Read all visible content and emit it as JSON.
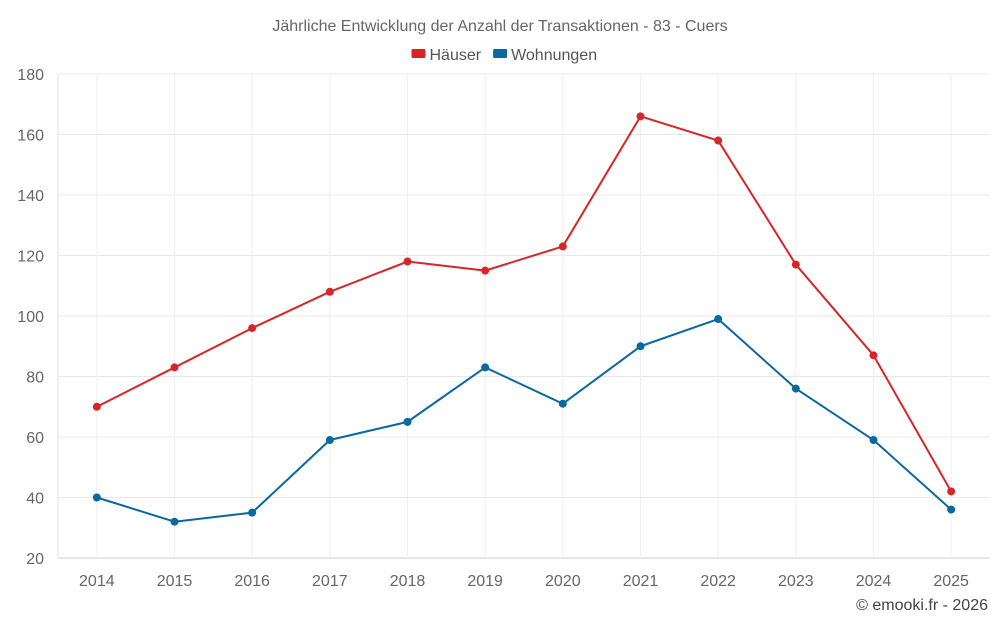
{
  "chart_data": {
    "type": "line",
    "title": "Jährliche Entwicklung der Anzahl der Transaktionen - 83 - Cuers",
    "categories": [
      "2014",
      "2015",
      "2016",
      "2017",
      "2018",
      "2019",
      "2020",
      "2021",
      "2022",
      "2023",
      "2024",
      "2025"
    ],
    "series": [
      {
        "name": "Häuser",
        "color": "#d62728",
        "values": [
          70,
          83,
          96,
          108,
          118,
          115,
          123,
          166,
          158,
          117,
          87,
          42
        ]
      },
      {
        "name": "Wohnungen",
        "color": "#0868a0",
        "values": [
          40,
          32,
          35,
          59,
          65,
          83,
          71,
          90,
          99,
          76,
          59,
          36
        ]
      }
    ],
    "ylim": [
      20,
      180
    ],
    "yticks": [
      20,
      40,
      60,
      80,
      100,
      120,
      140,
      160,
      180
    ],
    "xlabel": "",
    "ylabel": "",
    "grid": true,
    "legend": "top-center"
  },
  "credit": "© emooki.fr - 2026"
}
